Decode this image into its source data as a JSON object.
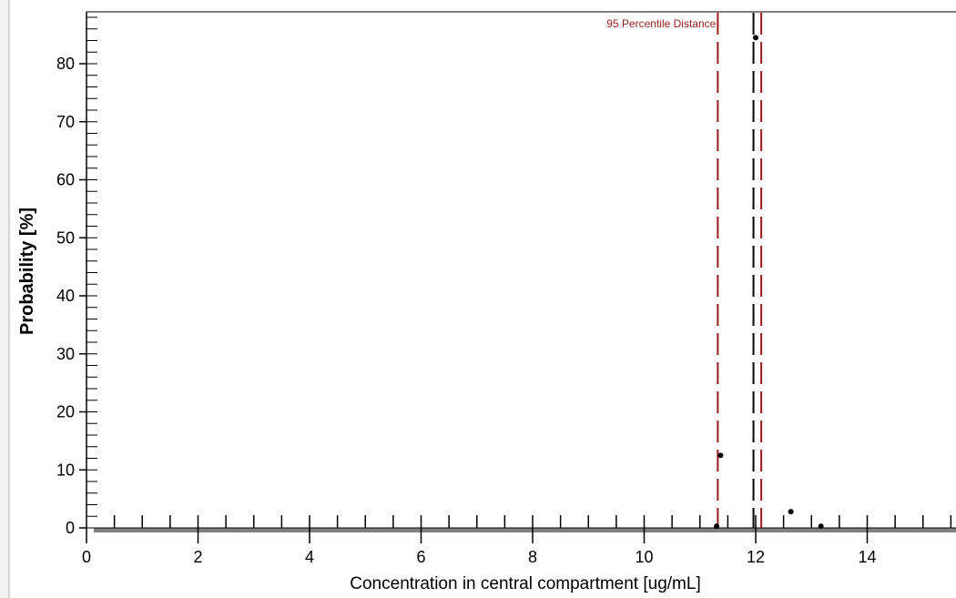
{
  "chart_data": {
    "type": "scatter",
    "xlabel": "Concentration in central compartment [ug/mL]",
    "ylabel": "Probability [%]",
    "xlim": [
      0,
      15.8
    ],
    "ylim": [
      0,
      88
    ],
    "x_ticks": [
      0,
      2,
      4,
      6,
      8,
      10,
      12,
      14
    ],
    "y_ticks": [
      0,
      10,
      20,
      30,
      40,
      50,
      60,
      70,
      80
    ],
    "grid": false,
    "points": [
      {
        "x": 11.3,
        "y": 0.3
      },
      {
        "x": 11.37,
        "y": 12.5
      },
      {
        "x": 12.0,
        "y": 84.5
      },
      {
        "x": 12.63,
        "y": 2.8
      },
      {
        "x": 13.17,
        "y": 0.3
      }
    ],
    "reference_lines": [
      {
        "x": 11.32,
        "color": "#9b1c1c",
        "style": "dashed"
      },
      {
        "x": 11.96,
        "color": "#000000",
        "style": "dashed"
      },
      {
        "x": 12.1,
        "color": "#9b1c1c",
        "style": "dashed"
      }
    ],
    "annotations": [
      {
        "text": "95 Percentile Distance",
        "color": "#9b1c1c"
      }
    ],
    "colors": {
      "points": "#000000",
      "percentile": "#9b1c1c",
      "median": "#000000",
      "baseline": "#808080",
      "frame": "#c8c8c8"
    }
  }
}
